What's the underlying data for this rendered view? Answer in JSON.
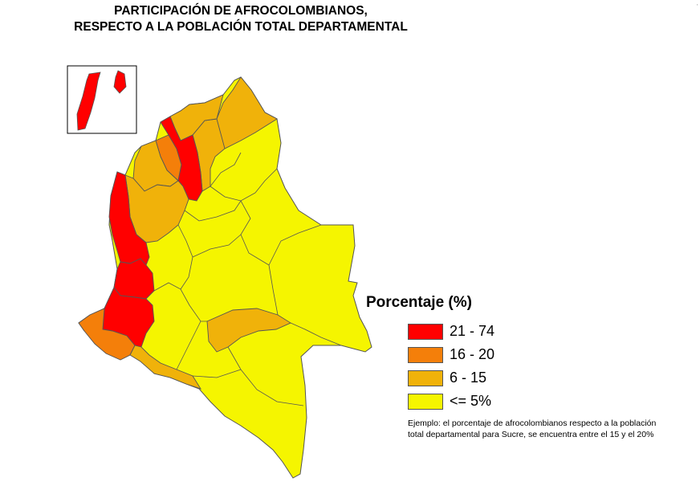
{
  "title": {
    "line1": "PARTICIPACIÓN DE  AFROCOLOMBIANOS,",
    "line2": "RESPECTO A LA POBLACIÓN TOTAL DEPARTAMENTAL"
  },
  "legend": {
    "title": "Porcentaje (%)",
    "items": [
      {
        "label": "21 - 74",
        "color": "#ff0000"
      },
      {
        "label": "16 - 20",
        "color": "#f47f0a"
      },
      {
        "label": "6 - 15",
        "color": "#f0b20a"
      },
      {
        "label": "<= 5%",
        "color": "#f5f500"
      }
    ]
  },
  "note": {
    "line1": "Ejemplo: el porcentaje de afrocolombianos respecto a la población",
    "line2": "total departamental para Sucre, se encuentra entre el 15 y el 20%"
  },
  "corner_mark": "'",
  "colors": {
    "border": "#555555",
    "background": "#ffffff"
  }
}
